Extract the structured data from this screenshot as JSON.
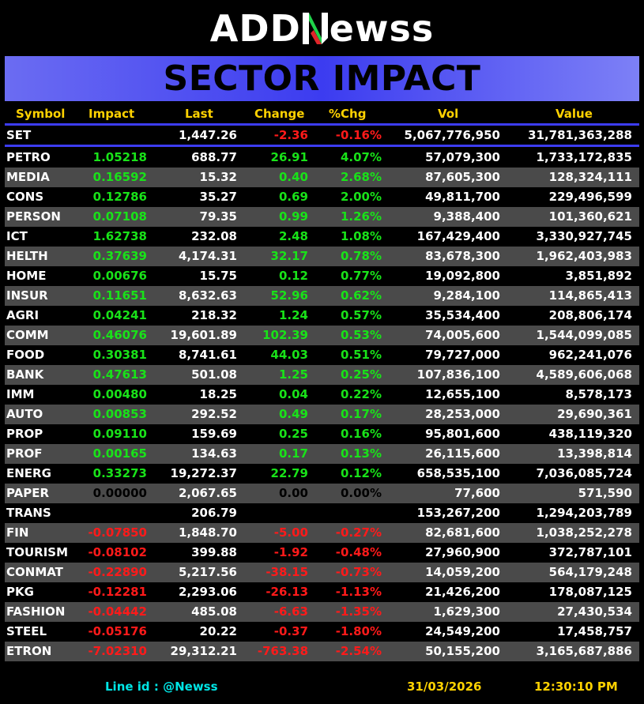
{
  "logo": {
    "part1": "ADD",
    "part2": "ewss"
  },
  "banner": {
    "title": "SECTOR IMPACT"
  },
  "columns": {
    "symbol": "Symbol",
    "impact": "Impact",
    "last": "Last",
    "change": "Change",
    "pct": "%Chg",
    "vol": "Vol",
    "value": "Value"
  },
  "set_row": {
    "symbol": "SET",
    "impact": "",
    "last": "1,447.26",
    "change": "-2.36",
    "pct": "-0.16%",
    "vol": "5,067,776,950",
    "value": "31,781,363,288",
    "trend": "neg"
  },
  "rows": [
    {
      "symbol": "PETRO",
      "impact": "1.05218",
      "last": "688.77",
      "change": "26.91",
      "pct": "4.07%",
      "vol": "57,079,300",
      "value": "1,733,172,835",
      "trend": "pos"
    },
    {
      "symbol": "MEDIA",
      "impact": "0.16592",
      "last": "15.32",
      "change": "0.40",
      "pct": "2.68%",
      "vol": "87,605,300",
      "value": "128,324,111",
      "trend": "pos"
    },
    {
      "symbol": "CONS",
      "impact": "0.12786",
      "last": "35.27",
      "change": "0.69",
      "pct": "2.00%",
      "vol": "49,811,700",
      "value": "229,496,599",
      "trend": "pos"
    },
    {
      "symbol": "PERSON",
      "impact": "0.07108",
      "last": "79.35",
      "change": "0.99",
      "pct": "1.26%",
      "vol": "9,388,400",
      "value": "101,360,621",
      "trend": "pos"
    },
    {
      "symbol": "ICT",
      "impact": "1.62738",
      "last": "232.08",
      "change": "2.48",
      "pct": "1.08%",
      "vol": "167,429,400",
      "value": "3,330,927,745",
      "trend": "pos"
    },
    {
      "symbol": "HELTH",
      "impact": "0.37639",
      "last": "4,174.31",
      "change": "32.17",
      "pct": "0.78%",
      "vol": "83,678,300",
      "value": "1,962,403,983",
      "trend": "pos"
    },
    {
      "symbol": "HOME",
      "impact": "0.00676",
      "last": "15.75",
      "change": "0.12",
      "pct": "0.77%",
      "vol": "19,092,800",
      "value": "3,851,892",
      "trend": "pos"
    },
    {
      "symbol": "INSUR",
      "impact": "0.11651",
      "last": "8,632.63",
      "change": "52.96",
      "pct": "0.62%",
      "vol": "9,284,100",
      "value": "114,865,413",
      "trend": "pos"
    },
    {
      "symbol": "AGRI",
      "impact": "0.04241",
      "last": "218.32",
      "change": "1.24",
      "pct": "0.57%",
      "vol": "35,534,400",
      "value": "208,806,174",
      "trend": "pos"
    },
    {
      "symbol": "COMM",
      "impact": "0.46076",
      "last": "19,601.89",
      "change": "102.39",
      "pct": "0.53%",
      "vol": "74,005,600",
      "value": "1,544,099,085",
      "trend": "pos"
    },
    {
      "symbol": "FOOD",
      "impact": "0.30381",
      "last": "8,741.61",
      "change": "44.03",
      "pct": "0.51%",
      "vol": "79,727,000",
      "value": "962,241,076",
      "trend": "pos"
    },
    {
      "symbol": "BANK",
      "impact": "0.47613",
      "last": "501.08",
      "change": "1.25",
      "pct": "0.25%",
      "vol": "107,836,100",
      "value": "4,589,606,068",
      "trend": "pos"
    },
    {
      "symbol": "IMM",
      "impact": "0.00480",
      "last": "18.25",
      "change": "0.04",
      "pct": "0.22%",
      "vol": "12,655,100",
      "value": "8,578,173",
      "trend": "pos"
    },
    {
      "symbol": "AUTO",
      "impact": "0.00853",
      "last": "292.52",
      "change": "0.49",
      "pct": "0.17%",
      "vol": "28,253,000",
      "value": "29,690,361",
      "trend": "pos"
    },
    {
      "symbol": "PROP",
      "impact": "0.09110",
      "last": "159.69",
      "change": "0.25",
      "pct": "0.16%",
      "vol": "95,801,600",
      "value": "438,119,320",
      "trend": "pos"
    },
    {
      "symbol": "PROF",
      "impact": "0.00165",
      "last": "134.63",
      "change": "0.17",
      "pct": "0.13%",
      "vol": "26,115,600",
      "value": "13,398,814",
      "trend": "pos"
    },
    {
      "symbol": "ENERG",
      "impact": "0.33273",
      "last": "19,272.37",
      "change": "22.79",
      "pct": "0.12%",
      "vol": "658,535,100",
      "value": "7,036,085,724",
      "trend": "pos"
    },
    {
      "symbol": "PAPER",
      "impact": "0.00000",
      "last": "2,067.65",
      "change": "0.00",
      "pct": "0.00%",
      "vol": "77,600",
      "value": "571,590",
      "trend": "zero"
    },
    {
      "symbol": "TRANS",
      "impact": "",
      "last": "206.79",
      "change": "",
      "pct": "",
      "vol": "153,267,200",
      "value": "1,294,203,789",
      "trend": "zero"
    },
    {
      "symbol": "FIN",
      "impact": "-0.07850",
      "last": "1,848.70",
      "change": "-5.00",
      "pct": "-0.27%",
      "vol": "82,681,600",
      "value": "1,038,252,278",
      "trend": "neg"
    },
    {
      "symbol": "TOURISM",
      "impact": "-0.08102",
      "last": "399.88",
      "change": "-1.92",
      "pct": "-0.48%",
      "vol": "27,960,900",
      "value": "372,787,101",
      "trend": "neg"
    },
    {
      "symbol": "CONMAT",
      "impact": "-0.22890",
      "last": "5,217.56",
      "change": "-38.15",
      "pct": "-0.73%",
      "vol": "14,059,200",
      "value": "564,179,248",
      "trend": "neg"
    },
    {
      "symbol": "PKG",
      "impact": "-0.12281",
      "last": "2,293.06",
      "change": "-26.13",
      "pct": "-1.13%",
      "vol": "21,426,200",
      "value": "178,087,125",
      "trend": "neg"
    },
    {
      "symbol": "FASHION",
      "impact": "-0.04442",
      "last": "485.08",
      "change": "-6.63",
      "pct": "-1.35%",
      "vol": "1,629,300",
      "value": "27,430,534",
      "trend": "neg"
    },
    {
      "symbol": "STEEL",
      "impact": "-0.05176",
      "last": "20.22",
      "change": "-0.37",
      "pct": "-1.80%",
      "vol": "24,549,200",
      "value": "17,458,757",
      "trend": "neg"
    },
    {
      "symbol": "ETRON",
      "impact": "-7.02310",
      "last": "29,312.21",
      "change": "-763.38",
      "pct": "-2.54%",
      "vol": "50,155,200",
      "value": "3,165,687,886",
      "trend": "neg"
    }
  ],
  "footer": {
    "line_id": "Line id  : @Newss",
    "date": "31/03/2026",
    "time": "12:30:10 PM"
  },
  "colors": {
    "positive": "#19e219",
    "negative": "#ff1a1a",
    "header": "#ffd200",
    "banner": "#3c3cf0"
  }
}
